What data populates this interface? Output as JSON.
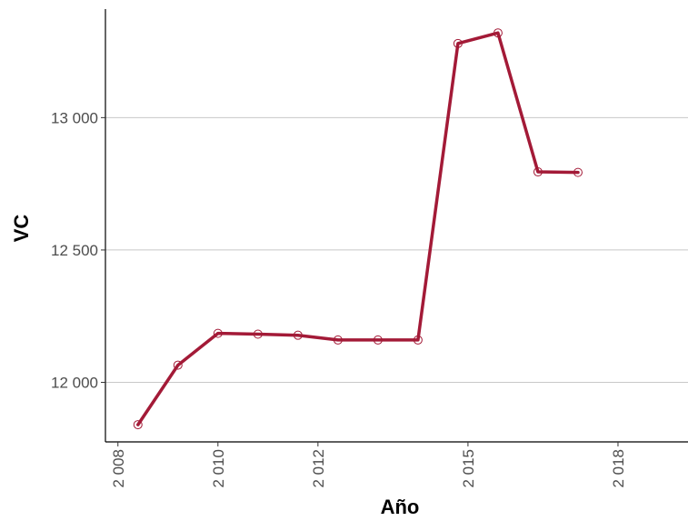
{
  "chart_data": {
    "type": "line",
    "title": "",
    "xlabel": "Año",
    "ylabel": "VC",
    "x_ticks": [
      {
        "value": 2008,
        "label": "2 008"
      },
      {
        "value": 2010,
        "label": "2 010"
      },
      {
        "value": 2012,
        "label": "2 012"
      },
      {
        "value": 2015,
        "label": "2 015"
      },
      {
        "value": 2018,
        "label": "2 018"
      }
    ],
    "y_ticks": [
      {
        "value": 12000,
        "label": "12 000"
      },
      {
        "value": 12500,
        "label": "12 500"
      },
      {
        "value": 13000,
        "label": "13 000"
      }
    ],
    "xlim": [
      2007.75,
      2019.4
    ],
    "ylim": [
      11775,
      13410
    ],
    "grid": "horizontal major",
    "series": [
      {
        "color": "#a31a37",
        "points": [
          {
            "x": 2008.4,
            "y": 11840
          },
          {
            "x": 2009.2,
            "y": 12065
          },
          {
            "x": 2010.0,
            "y": 12185
          },
          {
            "x": 2010.8,
            "y": 12182
          },
          {
            "x": 2011.6,
            "y": 12178
          },
          {
            "x": 2012.4,
            "y": 12160
          },
          {
            "x": 2013.2,
            "y": 12160
          },
          {
            "x": 2014.0,
            "y": 12160
          },
          {
            "x": 2014.8,
            "y": 13280
          },
          {
            "x": 2015.6,
            "y": 13320
          },
          {
            "x": 2016.4,
            "y": 12795
          },
          {
            "x": 2017.2,
            "y": 12793
          }
        ]
      }
    ]
  }
}
